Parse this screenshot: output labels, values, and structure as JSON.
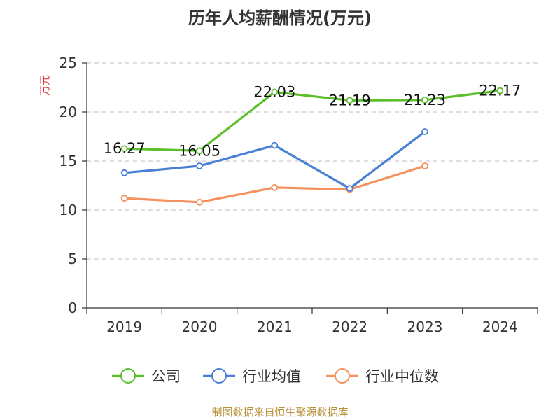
{
  "chart_data": {
    "type": "line",
    "title": "历年人均薪酬情况(万元)",
    "ylabel": "万元",
    "xlabel": "",
    "categories": [
      "2019",
      "2020",
      "2021",
      "2022",
      "2023",
      "2024"
    ],
    "ylim": [
      0,
      25
    ],
    "yticks": [
      0,
      5,
      10,
      15,
      20,
      25
    ],
    "grid": "horizontal-dashed",
    "legend_position": "bottom",
    "series": [
      {
        "name": "公司",
        "color": "#5cbf2a",
        "values": [
          16.27,
          16.05,
          22.03,
          21.19,
          21.23,
          22.17
        ],
        "labels": [
          "16.27",
          "16.05",
          "22.03",
          "21.19",
          "21.23",
          "22.17"
        ]
      },
      {
        "name": "行业均值",
        "color": "#4a7fd6",
        "values": [
          13.8,
          14.5,
          16.6,
          12.2,
          18.0,
          null
        ]
      },
      {
        "name": "行业中位数",
        "color": "#f4915e",
        "values": [
          11.2,
          10.8,
          12.3,
          12.1,
          14.5,
          null
        ]
      }
    ]
  },
  "footer": {
    "source": "制图数据来自恒生聚源数据库"
  }
}
